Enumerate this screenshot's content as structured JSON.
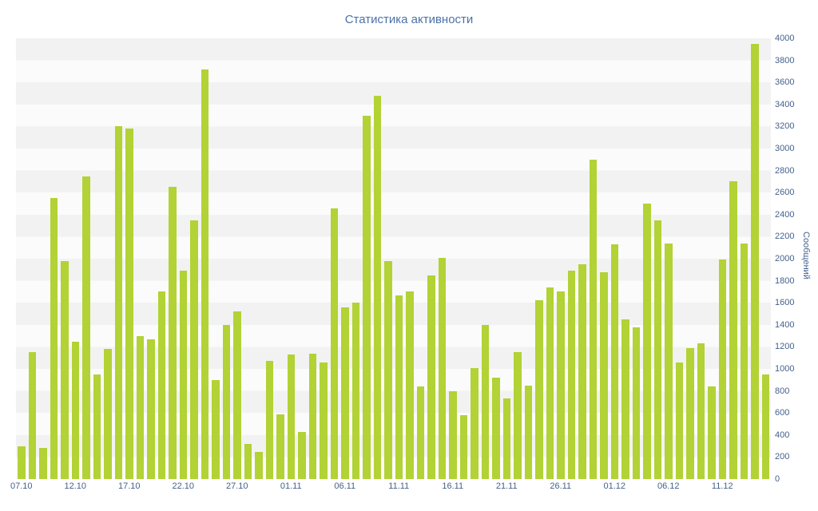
{
  "colors": {
    "bar": "#b2d235",
    "title_text": "#4a72a6",
    "axis_text": "#44618c",
    "stripe_dark": "#f2f2f2",
    "stripe_light": "#fbfbfb",
    "background": "#ffffff"
  },
  "chart_data": {
    "type": "bar",
    "title": "Статистика активности",
    "xlabel": "",
    "ylabel": "Сообщений",
    "ylim": [
      0,
      4000
    ],
    "y_ticks": [
      0,
      200,
      400,
      600,
      800,
      1000,
      1200,
      1400,
      1600,
      1800,
      2000,
      2200,
      2400,
      2600,
      2800,
      3000,
      3200,
      3400,
      3600,
      3800,
      4000
    ],
    "legend": "none",
    "grid": "striped-bands",
    "yaxis_position": "right",
    "xtick_labels": [
      "07.10",
      "12.10",
      "17.10",
      "22.10",
      "27.10",
      "01.11",
      "06.11",
      "11.11",
      "16.11",
      "21.11",
      "26.11",
      "01.12",
      "06.12",
      "11.12"
    ],
    "xtick_indices": [
      0,
      5,
      10,
      15,
      20,
      25,
      30,
      35,
      40,
      45,
      50,
      55,
      60,
      65
    ],
    "categories": [
      "07.10",
      "08.10",
      "09.10",
      "10.10",
      "11.10",
      "12.10",
      "13.10",
      "14.10",
      "15.10",
      "16.10",
      "17.10",
      "18.10",
      "19.10",
      "20.10",
      "21.10",
      "22.10",
      "23.10",
      "24.10",
      "25.10",
      "26.10",
      "27.10",
      "28.10",
      "29.10",
      "30.10",
      "31.10",
      "01.11",
      "02.11",
      "03.11",
      "04.11",
      "05.11",
      "06.11",
      "07.11",
      "08.11",
      "09.11",
      "10.11",
      "11.11",
      "12.11",
      "13.11",
      "14.11",
      "15.11",
      "16.11",
      "17.11",
      "18.11",
      "19.11",
      "20.11",
      "21.11",
      "22.11",
      "23.11",
      "24.11",
      "25.11",
      "26.11",
      "27.11",
      "28.11",
      "29.11",
      "30.11",
      "01.12",
      "02.12",
      "03.12",
      "04.12",
      "05.12",
      "06.12",
      "07.12",
      "08.12",
      "09.12",
      "10.12",
      "11.12",
      "12.12",
      "13.12",
      "14.12",
      "15.12"
    ],
    "values": [
      300,
      1150,
      280,
      2550,
      1980,
      1250,
      2750,
      950,
      1180,
      3200,
      3180,
      1300,
      1270,
      1700,
      2650,
      1890,
      2350,
      3720,
      900,
      1400,
      1520,
      320,
      250,
      1070,
      590,
      1130,
      430,
      1140,
      1060,
      2460,
      1560,
      1600,
      3300,
      3480,
      1980,
      1670,
      1700,
      840,
      1850,
      2010,
      800,
      580,
      1010,
      1400,
      920,
      730,
      1150,
      850,
      1620,
      1740,
      1700,
      1890,
      1950,
      2900,
      1880,
      2130,
      1450,
      1380,
      2500,
      2350,
      2140,
      1060,
      1190,
      1230,
      840,
      1990,
      2700,
      2140,
      3950,
      950
    ]
  }
}
